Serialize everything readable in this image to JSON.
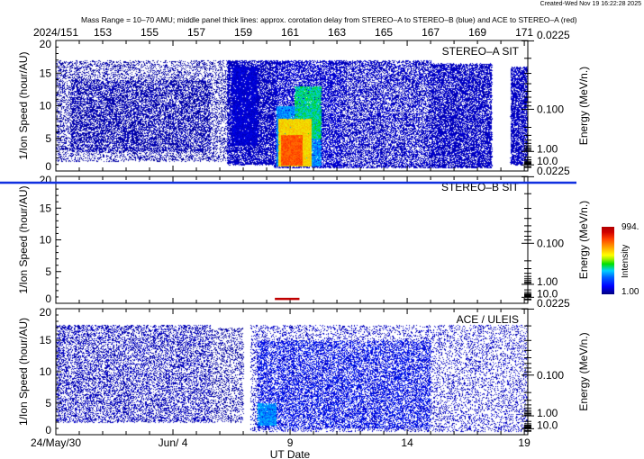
{
  "header": {
    "created": "Created-Wed Nov 19 16:22:28 2025",
    "title": "Mass Range = 10–70 AMU;  middle panel thick lines: approx. corotation delay from STEREO–A to STEREO–B (blue) and ACE to STEREO–A (red)"
  },
  "chart_data": {
    "type": "heatmap",
    "xlabel": "UT Date",
    "x_range_doy": [
      151,
      171.15
    ],
    "top_ticks": [
      {
        "doy": 151,
        "label": "2024/151"
      },
      {
        "doy": 153,
        "label": "153"
      },
      {
        "doy": 155,
        "label": "155"
      },
      {
        "doy": 157,
        "label": "157"
      },
      {
        "doy": 159,
        "label": "159"
      },
      {
        "doy": 161,
        "label": "161"
      },
      {
        "doy": 163,
        "label": "163"
      },
      {
        "doy": 165,
        "label": "165"
      },
      {
        "doy": 167,
        "label": "167"
      },
      {
        "doy": 169,
        "label": "169"
      },
      {
        "doy": 171,
        "label": "171"
      }
    ],
    "bottom_ticks": [
      {
        "doy": 151,
        "label": "24/May/30"
      },
      {
        "doy": 156,
        "label": "Jun/ 4"
      },
      {
        "doy": 161,
        "label": "9"
      },
      {
        "doy": 166,
        "label": "14"
      },
      {
        "doy": 171,
        "label": "19"
      }
    ],
    "ylabel": "1/Ion Speed (hour/AU)",
    "ylim": [
      0,
      20
    ],
    "y_ticks": [
      0,
      5,
      10,
      15,
      20
    ],
    "y2label": "Energy (MeV/n.)",
    "y2_major": [
      {
        "value": 0.0225,
        "label": "0.0225"
      },
      {
        "value": 0.1,
        "label": "0.100"
      },
      {
        "value": 1,
        "label": "1.00"
      },
      {
        "value": 10,
        "label": "10.0"
      }
    ],
    "energy_speed_constant": 8.95,
    "colorbar": {
      "label": "Intensity",
      "max_label": "994.",
      "min_label": "1.00",
      "range": [
        1,
        994
      ]
    },
    "corotation_lines": {
      "blue": {
        "name": "STEREO-A to STEREO-B",
        "color": "#1030e0"
      },
      "red": {
        "name": "ACE to STEREO-A",
        "doy": [
          160.35,
          161.4
        ],
        "speed": 0.7,
        "color": "#c00000"
      }
    },
    "panels": [
      {
        "name": "STEREO–A SIT",
        "regions": [
          {
            "x": [
              151,
              158.3
            ],
            "y": [
              1.5,
              17
            ],
            "n": 9000,
            "i": 0.02
          },
          {
            "x": [
              151.6,
              157.6
            ],
            "y": [
              3,
              14
            ],
            "n": 7000,
            "i": 0.05
          },
          {
            "x": [
              158.3,
              160.3
            ],
            "y": [
              1,
              17
            ],
            "n": 9000,
            "i": 0.08
          },
          {
            "x": [
              158.5,
              159.6
            ],
            "y": [
              4,
              16
            ],
            "n": 5000,
            "i": 0.12
          },
          {
            "x": [
              160.3,
              163.2
            ],
            "y": [
              0.5,
              17
            ],
            "n": 20000,
            "i": 0.1
          },
          {
            "x": [
              160.4,
              162.3
            ],
            "y": [
              0.8,
              10
            ],
            "n": 9000,
            "i": 0.35
          },
          {
            "x": [
              161.2,
              162.3
            ],
            "y": [
              5,
              13
            ],
            "n": 5000,
            "i": 0.45
          },
          {
            "x": [
              160.5,
              161.9
            ],
            "y": [
              0.8,
              8
            ],
            "n": 9000,
            "i": 0.65
          },
          {
            "x": [
              160.6,
              161.5
            ],
            "y": [
              1,
              5.5
            ],
            "n": 6000,
            "i": 0.85
          },
          {
            "x": [
              163.2,
              167
            ],
            "y": [
              0.5,
              17
            ],
            "n": 22000,
            "i": 0.08
          },
          {
            "x": [
              167,
              169.6
            ],
            "y": [
              0.5,
              16.5
            ],
            "n": 15000,
            "i": 0.08
          },
          {
            "x": [
              170.4,
              171.15
            ],
            "y": [
              1,
              16
            ],
            "n": 3000,
            "i": 0.08
          }
        ]
      },
      {
        "name": "STEREO–B SIT",
        "regions": []
      },
      {
        "name": "ACE / ULEIS",
        "regions": [
          {
            "x": [
              151,
              157.6
            ],
            "y": [
              2,
              17.5
            ],
            "n": 22000,
            "i": 0.06
          },
          {
            "x": [
              157.6,
              159
            ],
            "y": [
              2,
              17
            ],
            "n": 1500,
            "i": 0.02
          },
          {
            "x": [
              159.3,
              171.15
            ],
            "y": [
              0.5,
              17.5
            ],
            "n": 45000,
            "i": 0.08
          },
          {
            "x": [
              159.6,
              167
            ],
            "y": [
              1,
              15
            ],
            "n": 20000,
            "i": 0.18
          },
          {
            "x": [
              159.6,
              160.4
            ],
            "y": [
              1.5,
              5
            ],
            "n": 1500,
            "i": 0.35
          }
        ]
      }
    ]
  }
}
